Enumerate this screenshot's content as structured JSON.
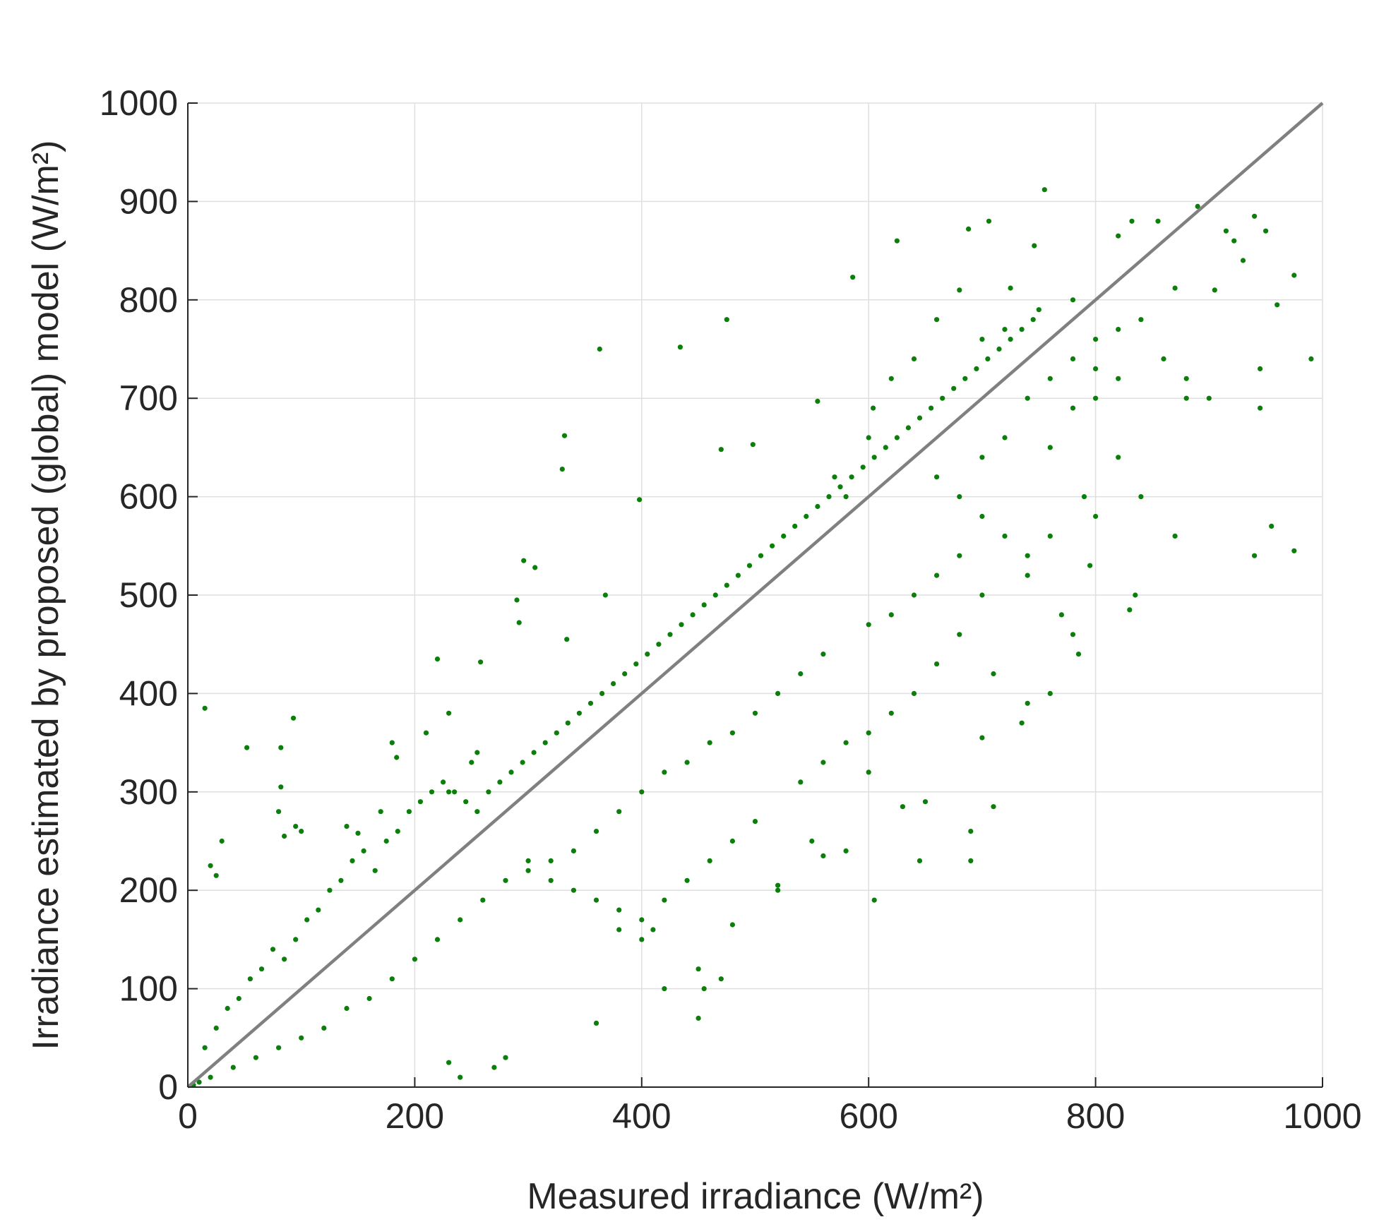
{
  "chart_data": {
    "type": "scatter",
    "xlabel": "Measured irradiance (W/m²)",
    "ylabel": "Irradiance estimated by proposed (global) model (W/m²)",
    "xlim": [
      0,
      1000
    ],
    "ylim": [
      0,
      1000
    ],
    "xticks": [
      0,
      200,
      400,
      600,
      800,
      1000
    ],
    "yticks": [
      0,
      100,
      200,
      300,
      400,
      500,
      600,
      700,
      800,
      900,
      1000
    ],
    "grid": true,
    "legend": "none",
    "colors": {
      "points": "#0a7f0a",
      "reference_line": "#808080",
      "axis": "#262626",
      "grid": "#dfdfdf"
    },
    "reference_line": {
      "x": [
        0,
        1000
      ],
      "y": [
        0,
        1000
      ]
    },
    "series": [
      {
        "marker": "dot",
        "points": [
          [
            15,
            385
          ],
          [
            93,
            375
          ],
          [
            82,
            305
          ],
          [
            82,
            345
          ],
          [
            52,
            345
          ],
          [
            180,
            350
          ],
          [
            184,
            335
          ],
          [
            220,
            435
          ],
          [
            258,
            432
          ],
          [
            296,
            535
          ],
          [
            306,
            528
          ],
          [
            290,
            495
          ],
          [
            292,
            472
          ],
          [
            332,
            662
          ],
          [
            330,
            628
          ],
          [
            363,
            750
          ],
          [
            368,
            500
          ],
          [
            334,
            455
          ],
          [
            398,
            597
          ],
          [
            434,
            752
          ],
          [
            475,
            780
          ],
          [
            470,
            648
          ],
          [
            498,
            653
          ],
          [
            586,
            823
          ],
          [
            625,
            860
          ],
          [
            555,
            697
          ],
          [
            604,
            690
          ],
          [
            706,
            880
          ],
          [
            688,
            872
          ],
          [
            746,
            855
          ],
          [
            755,
            912
          ],
          [
            725,
            812
          ],
          [
            680,
            810
          ],
          [
            870,
            812
          ],
          [
            855,
            880
          ],
          [
            832,
            880
          ],
          [
            820,
            865
          ],
          [
            890,
            895
          ],
          [
            915,
            870
          ],
          [
            940,
            885
          ],
          [
            950,
            870
          ],
          [
            975,
            825
          ],
          [
            990,
            740
          ],
          [
            960,
            795
          ],
          [
            945,
            730
          ],
          [
            945,
            690
          ],
          [
            955,
            570
          ],
          [
            975,
            545
          ],
          [
            940,
            540
          ],
          [
            922,
            860
          ],
          [
            930,
            840
          ],
          [
            905,
            810
          ],
          [
            880,
            700
          ],
          [
            870,
            560
          ],
          [
            835,
            500
          ],
          [
            830,
            485
          ],
          [
            795,
            530
          ],
          [
            785,
            440
          ],
          [
            780,
            460
          ],
          [
            770,
            480
          ],
          [
            760,
            400
          ],
          [
            740,
            390
          ],
          [
            735,
            370
          ],
          [
            710,
            420
          ],
          [
            700,
            355
          ],
          [
            690,
            260
          ],
          [
            690,
            230
          ],
          [
            710,
            285
          ],
          [
            650,
            290
          ],
          [
            630,
            285
          ],
          [
            645,
            230
          ],
          [
            605,
            190
          ],
          [
            600,
            320
          ],
          [
            580,
            240
          ],
          [
            560,
            235
          ],
          [
            550,
            250
          ],
          [
            520,
            200
          ],
          [
            520,
            205
          ],
          [
            480,
            165
          ],
          [
            470,
            110
          ],
          [
            455,
            100
          ],
          [
            450,
            120
          ],
          [
            450,
            70
          ],
          [
            420,
            100
          ],
          [
            400,
            150
          ],
          [
            410,
            160
          ],
          [
            380,
            160
          ],
          [
            360,
            65
          ],
          [
            240,
            10
          ],
          [
            230,
            25
          ],
          [
            270,
            20
          ],
          [
            280,
            30
          ],
          [
            20,
            225
          ],
          [
            25,
            215
          ],
          [
            30,
            250
          ],
          [
            80,
            280
          ],
          [
            85,
            255
          ],
          [
            95,
            265
          ],
          [
            100,
            260
          ],
          [
            140,
            265
          ],
          [
            150,
            258
          ],
          [
            170,
            280
          ],
          [
            230,
            300
          ],
          [
            210,
            360
          ],
          [
            230,
            380
          ],
          [
            250,
            330
          ],
          [
            255,
            340
          ],
          [
            570,
            620
          ],
          [
            580,
            600
          ],
          [
            600,
            660
          ],
          [
            620,
            720
          ],
          [
            640,
            740
          ],
          [
            660,
            780
          ],
          [
            700,
            760
          ],
          [
            720,
            770
          ],
          [
            750,
            790
          ],
          [
            780,
            800
          ],
          [
            800,
            760
          ],
          [
            820,
            770
          ],
          [
            840,
            780
          ],
          [
            860,
            740
          ],
          [
            880,
            720
          ],
          [
            900,
            700
          ],
          [
            840,
            600
          ],
          [
            820,
            640
          ],
          [
            800,
            580
          ],
          [
            790,
            600
          ],
          [
            760,
            560
          ],
          [
            740,
            520
          ],
          [
            700,
            500
          ],
          [
            680,
            460
          ],
          [
            660,
            430
          ],
          [
            640,
            400
          ],
          [
            620,
            380
          ],
          [
            600,
            360
          ],
          [
            580,
            350
          ],
          [
            560,
            330
          ],
          [
            540,
            310
          ],
          [
            500,
            270
          ],
          [
            480,
            250
          ],
          [
            460,
            230
          ],
          [
            440,
            210
          ],
          [
            420,
            190
          ],
          [
            400,
            170
          ],
          [
            380,
            180
          ],
          [
            360,
            190
          ],
          [
            340,
            200
          ],
          [
            320,
            210
          ],
          [
            300,
            220
          ],
          [
            700,
            640
          ],
          [
            720,
            660
          ],
          [
            740,
            700
          ],
          [
            760,
            720
          ],
          [
            780,
            740
          ],
          [
            800,
            730
          ],
          [
            820,
            720
          ],
          [
            760,
            650
          ],
          [
            780,
            690
          ],
          [
            800,
            700
          ],
          [
            660,
            620
          ],
          [
            680,
            600
          ],
          [
            700,
            580
          ],
          [
            720,
            560
          ],
          [
            740,
            540
          ],
          [
            680,
            540
          ],
          [
            660,
            520
          ],
          [
            640,
            500
          ],
          [
            620,
            480
          ],
          [
            600,
            470
          ],
          [
            560,
            440
          ],
          [
            540,
            420
          ],
          [
            520,
            400
          ],
          [
            500,
            380
          ],
          [
            480,
            360
          ],
          [
            460,
            350
          ],
          [
            440,
            330
          ],
          [
            420,
            320
          ],
          [
            400,
            300
          ],
          [
            380,
            280
          ],
          [
            360,
            260
          ],
          [
            340,
            240
          ],
          [
            320,
            230
          ],
          [
            300,
            230
          ],
          [
            280,
            210
          ],
          [
            260,
            190
          ],
          [
            240,
            170
          ],
          [
            220,
            150
          ],
          [
            200,
            130
          ],
          [
            180,
            110
          ],
          [
            160,
            90
          ],
          [
            140,
            80
          ],
          [
            120,
            60
          ],
          [
            100,
            50
          ],
          [
            80,
            40
          ],
          [
            60,
            30
          ],
          [
            40,
            20
          ],
          [
            20,
            10
          ],
          [
            10,
            5
          ],
          [
            5,
            2
          ],
          [
            15,
            40
          ],
          [
            25,
            60
          ],
          [
            35,
            80
          ],
          [
            45,
            90
          ],
          [
            55,
            110
          ],
          [
            65,
            120
          ],
          [
            75,
            140
          ],
          [
            85,
            130
          ],
          [
            95,
            150
          ],
          [
            105,
            170
          ],
          [
            115,
            180
          ],
          [
            125,
            200
          ],
          [
            135,
            210
          ],
          [
            145,
            230
          ],
          [
            155,
            240
          ],
          [
            165,
            220
          ],
          [
            175,
            250
          ],
          [
            185,
            260
          ],
          [
            195,
            280
          ],
          [
            205,
            290
          ],
          [
            215,
            300
          ],
          [
            225,
            310
          ],
          [
            235,
            300
          ],
          [
            245,
            290
          ],
          [
            255,
            280
          ],
          [
            265,
            300
          ],
          [
            275,
            310
          ],
          [
            285,
            320
          ],
          [
            295,
            330
          ],
          [
            305,
            340
          ],
          [
            315,
            350
          ],
          [
            325,
            360
          ],
          [
            335,
            370
          ],
          [
            345,
            380
          ],
          [
            355,
            390
          ],
          [
            365,
            400
          ],
          [
            375,
            410
          ],
          [
            385,
            420
          ],
          [
            395,
            430
          ],
          [
            405,
            440
          ],
          [
            415,
            450
          ],
          [
            425,
            460
          ],
          [
            435,
            470
          ],
          [
            445,
            480
          ],
          [
            455,
            490
          ],
          [
            465,
            500
          ],
          [
            475,
            510
          ],
          [
            485,
            520
          ],
          [
            495,
            530
          ],
          [
            505,
            540
          ],
          [
            515,
            550
          ],
          [
            525,
            560
          ],
          [
            535,
            570
          ],
          [
            545,
            580
          ],
          [
            555,
            590
          ],
          [
            565,
            600
          ],
          [
            575,
            610
          ],
          [
            585,
            620
          ],
          [
            595,
            630
          ],
          [
            605,
            640
          ],
          [
            615,
            650
          ],
          [
            625,
            660
          ],
          [
            635,
            670
          ],
          [
            645,
            680
          ],
          [
            655,
            690
          ],
          [
            665,
            700
          ],
          [
            675,
            710
          ],
          [
            685,
            720
          ],
          [
            695,
            730
          ],
          [
            705,
            740
          ],
          [
            715,
            750
          ],
          [
            725,
            760
          ],
          [
            735,
            770
          ],
          [
            745,
            780
          ]
        ]
      }
    ]
  }
}
